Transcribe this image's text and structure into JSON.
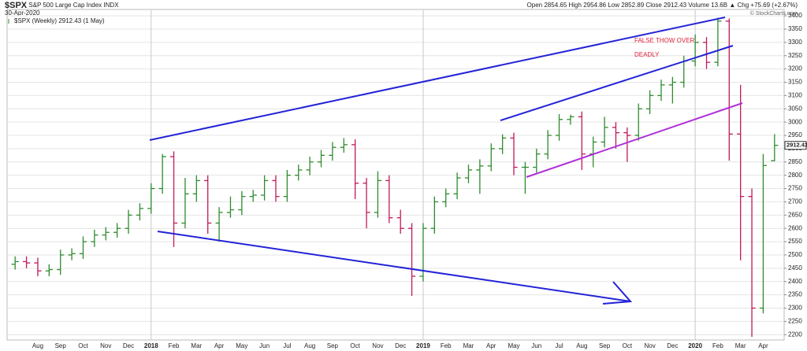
{
  "chart_data": {
    "type": "ohlc",
    "symbol": "$SPX",
    "name": "S&P 500 Large Cap Index",
    "exchange": "INDX",
    "date": "30-Apr-2020",
    "credit": "© StockCharts.com",
    "legend": "$SPX (Weekly)",
    "legend_date": "(1 May)",
    "stat_labels": [
      "Open",
      "High",
      "Low",
      "Close",
      "Volume",
      "Chg"
    ],
    "volume": "13.6B",
    "change": "+75.69 (+2.67%)",
    "annotations": [
      "FALSE THOW OVER",
      "DEADLY"
    ],
    "up_color": "#2e8b2e",
    "down_color": "#c2185b",
    "categories": [
      null,
      null,
      "Aug",
      null,
      "Sep",
      null,
      "Oct",
      null,
      "Nov",
      null,
      "Dec",
      null,
      "2018",
      null,
      "Feb",
      null,
      "Mar",
      null,
      "Apr",
      null,
      "May",
      null,
      "Jun",
      null,
      "Jul",
      null,
      "Aug",
      null,
      "Sep",
      null,
      "Oct",
      null,
      "Nov",
      null,
      "Dec",
      null,
      "2019",
      null,
      "Feb",
      null,
      "Mar",
      null,
      "Apr",
      null,
      "May",
      null,
      "Jun",
      null,
      "Jul",
      null,
      "Aug",
      null,
      "Sep",
      null,
      "Oct",
      null,
      "Nov",
      null,
      "Dec",
      null,
      "2020",
      null,
      "Feb",
      null,
      "Mar",
      null,
      "Apr",
      null
    ],
    "open": [
      2465,
      2475,
      2470,
      2440,
      2445,
      2500,
      2505,
      2550,
      2575,
      2585,
      2600,
      2650,
      2675,
      2750,
      2870,
      2620,
      2730,
      2780,
      2620,
      2660,
      2670,
      2720,
      2725,
      2780,
      2720,
      2800,
      2820,
      2850,
      2875,
      2905,
      2915,
      2770,
      2660,
      2780,
      2640,
      2600,
      2420,
      2600,
      2700,
      2730,
      2790,
      2820,
      2835,
      2900,
      2940,
      2830,
      2830,
      2880,
      2950,
      3010,
      3020,
      2880,
      2925,
      2980,
      2960,
      2950,
      3050,
      3100,
      3140,
      3150,
      3230,
      3300,
      3225,
      3380,
      2955,
      2720,
      2300,
      2854.65
    ],
    "high": [
      2495,
      2495,
      2490,
      2465,
      2520,
      2525,
      2570,
      2595,
      2605,
      2620,
      2670,
      2695,
      2770,
      2880,
      2890,
      2790,
      2800,
      2800,
      2680,
      2720,
      2740,
      2745,
      2800,
      2800,
      2820,
      2840,
      2870,
      2895,
      2925,
      2940,
      2935,
      2790,
      2815,
      2800,
      2670,
      2620,
      2620,
      2720,
      2750,
      2810,
      2840,
      2860,
      2920,
      2954,
      2960,
      2850,
      2900,
      2970,
      3030,
      3028,
      3040,
      2945,
      3020,
      3000,
      2980,
      3070,
      3120,
      3160,
      3170,
      3250,
      3330,
      3320,
      3393,
      3390,
      3140,
      2750,
      2880,
      2954.86
    ],
    "low": [
      2445,
      2450,
      2420,
      2420,
      2425,
      2480,
      2485,
      2530,
      2555,
      2565,
      2580,
      2630,
      2655,
      2730,
      2530,
      2600,
      2700,
      2580,
      2550,
      2640,
      2650,
      2700,
      2705,
      2700,
      2700,
      2780,
      2800,
      2830,
      2855,
      2885,
      2710,
      2600,
      2640,
      2620,
      2580,
      2346,
      2400,
      2580,
      2680,
      2710,
      2770,
      2730,
      2815,
      2880,
      2800,
      2730,
      2810,
      2860,
      2930,
      2990,
      2820,
      2830,
      2905,
      2900,
      2850,
      2930,
      3030,
      3080,
      3070,
      3130,
      3210,
      3200,
      3210,
      2855,
      2480,
      2192,
      2280,
      2852.89
    ],
    "close": [
      2475,
      2470,
      2440,
      2445,
      2500,
      2505,
      2550,
      2575,
      2585,
      2600,
      2650,
      2675,
      2750,
      2870,
      2620,
      2730,
      2780,
      2620,
      2660,
      2670,
      2720,
      2725,
      2780,
      2720,
      2800,
      2820,
      2850,
      2875,
      2905,
      2915,
      2770,
      2660,
      2780,
      2640,
      2600,
      2420,
      2600,
      2700,
      2730,
      2790,
      2820,
      2835,
      2900,
      2940,
      2830,
      2830,
      2880,
      2950,
      3010,
      3020,
      2880,
      2925,
      2980,
      2960,
      2950,
      3050,
      3100,
      3140,
      3150,
      3230,
      3300,
      3225,
      3380,
      2955,
      2720,
      2300,
      2836.74,
      2912.43
    ],
    "ylim": [
      2180,
      3424
    ],
    "yticks": [
      2200,
      2250,
      2300,
      2350,
      2400,
      2450,
      2500,
      2550,
      2600,
      2650,
      2700,
      2750,
      2800,
      2850,
      2900,
      2950,
      3000,
      3050,
      3100,
      3150,
      3200,
      3250,
      3300,
      3350,
      3400
    ],
    "grid": true
  }
}
